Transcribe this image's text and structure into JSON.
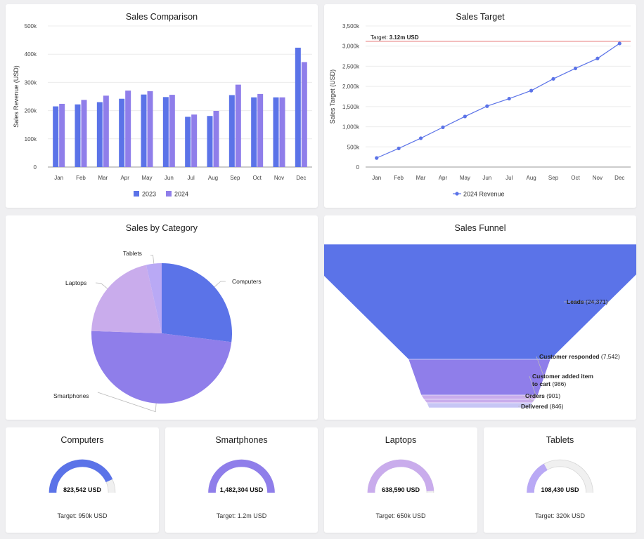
{
  "colors": {
    "c2023": "#5b73e8",
    "c2024": "#8f7eea",
    "line": "#5b73e8",
    "target_line": "#e57373",
    "computers": "#5b73e8",
    "smartphones": "#8f7eea",
    "laptops": "#c9acec",
    "tablets": "#b9a9f5",
    "gauge_track": "#f0f0f0"
  },
  "chart_data": [
    {
      "type": "bar",
      "title": "Sales Comparison",
      "xlabel": "",
      "ylabel": "Sales Revenue (USD)",
      "categories": [
        "Jan",
        "Feb",
        "Mar",
        "Apr",
        "May",
        "Jun",
        "Jul",
        "Aug",
        "Sep",
        "Oct",
        "Nov",
        "Dec"
      ],
      "ylim": [
        0,
        500000
      ],
      "yticks": [
        "0",
        "100k",
        "200k",
        "300k",
        "400k",
        "500k"
      ],
      "legend_position": "bottom",
      "series": [
        {
          "name": "2023",
          "values": [
            215000,
            222000,
            230000,
            242000,
            257000,
            248000,
            178000,
            181000,
            255000,
            247000,
            247000,
            423000
          ]
        },
        {
          "name": "2024",
          "values": [
            224000,
            238000,
            253000,
            271000,
            269000,
            256000,
            186000,
            199000,
            292000,
            259000,
            247000,
            372000
          ]
        }
      ]
    },
    {
      "type": "line",
      "title": "Sales Target",
      "xlabel": "",
      "ylabel": "Sales Target (USD)",
      "categories": [
        "Jan",
        "Feb",
        "Mar",
        "Apr",
        "May",
        "Jun",
        "Jul",
        "Aug",
        "Sep",
        "Oct",
        "Nov",
        "Dec"
      ],
      "ylim": [
        0,
        3500000
      ],
      "yticks": [
        "0",
        "500k",
        "1,000k",
        "1,500k",
        "2,000k",
        "2,500k",
        "3,000k",
        "3,500k"
      ],
      "legend_position": "bottom",
      "series": [
        {
          "name": "2024 Revenue",
          "values": [
            224000,
            462000,
            715000,
            986000,
            1255000,
            1511000,
            1697000,
            1896000,
            2188000,
            2447000,
            2694000,
            3066000
          ]
        }
      ],
      "target": {
        "value": 3120000,
        "label_prefix": "Target: ",
        "label_value": "3.12m USD"
      }
    },
    {
      "type": "pie",
      "title": "Sales by Category",
      "categories": [
        "Computers",
        "Smartphones",
        "Laptops",
        "Tablets"
      ],
      "values": [
        823542,
        1482304,
        638590,
        108430
      ]
    },
    {
      "type": "funnel",
      "title": "Sales Funnel",
      "stages": [
        {
          "name": "Leads",
          "value": 24371,
          "value_text": "(24,371)"
        },
        {
          "name": "Customer responded",
          "value": 7542,
          "value_text": "(7,542)"
        },
        {
          "name": "Customer added item",
          "name2": "to cart",
          "value": 986,
          "value_text": "(986)"
        },
        {
          "name": "Orders",
          "value": 901,
          "value_text": "(901)"
        },
        {
          "name": "Delivered",
          "value": 846,
          "value_text": "(846)"
        }
      ]
    }
  ],
  "gauges": [
    {
      "title": "Computers",
      "value": 823542,
      "target": 950000,
      "value_text": "823,542 USD",
      "target_text": "Target: 950k USD"
    },
    {
      "title": "Smartphones",
      "value": 1482304,
      "target": 1200000,
      "value_text": "1,482,304 USD",
      "target_text": "Target: 1.2m USD"
    },
    {
      "title": "Laptops",
      "value": 638590,
      "target": 650000,
      "value_text": "638,590 USD",
      "target_text": "Target: 650k USD"
    },
    {
      "title": "Tablets",
      "value": 108430,
      "target": 320000,
      "value_text": "108,430 USD",
      "target_text": "Target: 320k USD"
    }
  ]
}
